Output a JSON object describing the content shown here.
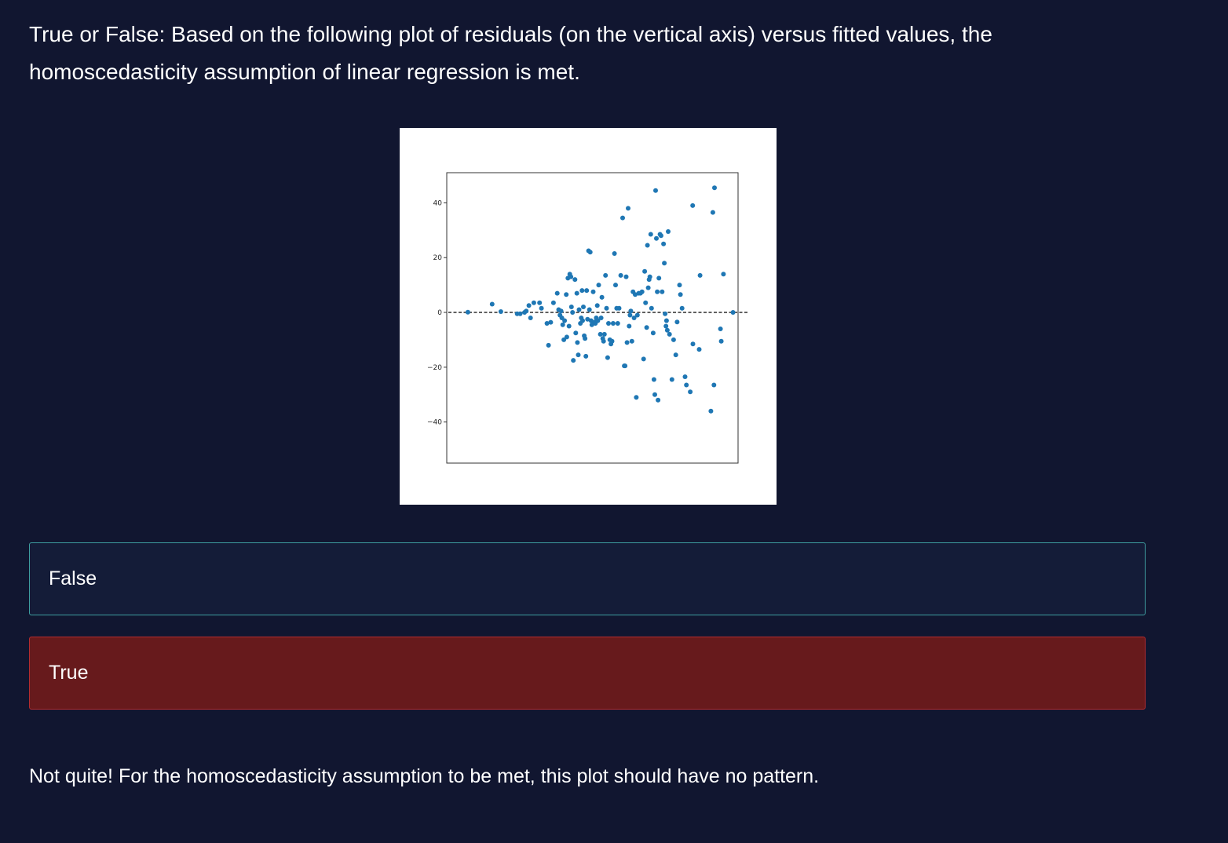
{
  "question": {
    "line1": "True or False: Based on the following plot of residuals (on the vertical axis) versus fitted values, the",
    "line2": "homoscedasticity assumption of linear regression is met."
  },
  "options": [
    {
      "label": "False",
      "state": "default"
    },
    {
      "label": "True",
      "state": "selected-incorrect"
    }
  ],
  "feedback": "Not quite! For the homoscedasticity assumption to be met, this plot should have no pattern.",
  "colors": {
    "background": "#111630",
    "option_default_bg": "#141c38",
    "option_default_border": "#3e9da0",
    "option_incorrect_bg": "#671a1c",
    "option_incorrect_border": "#b32c2f",
    "point_color": "#1f77b4"
  },
  "chart_data": {
    "type": "scatter",
    "title": "",
    "xlabel": "",
    "ylabel": "",
    "ylim": [
      -55,
      51
    ],
    "xlim": [
      0,
      100
    ],
    "yticks": [
      40,
      20,
      0,
      -20,
      -40
    ],
    "ytick_labels": [
      "40",
      "20",
      "0",
      "−20",
      "−40"
    ],
    "show_xticks": false,
    "reference_line": {
      "y": 0,
      "style": "dashed",
      "color": "#000000"
    },
    "points": [
      [
        4.3,
        0.1
      ],
      [
        13.2,
        3
      ],
      [
        16.4,
        0.3
      ],
      [
        22.4,
        -0.5
      ],
      [
        23.5,
        -0.5
      ],
      [
        25.1,
        0
      ],
      [
        25.7,
        0.5
      ],
      [
        26.7,
        2.5
      ],
      [
        27.3,
        -2
      ],
      [
        28.5,
        3.5
      ],
      [
        30.6,
        3.5
      ],
      [
        31.3,
        1.5
      ],
      [
        33.3,
        -4
      ],
      [
        33.9,
        -12
      ],
      [
        34.7,
        -3.6
      ],
      [
        35.7,
        3.5
      ],
      [
        37.1,
        7
      ],
      [
        37.6,
        1
      ],
      [
        38.1,
        -1
      ],
      [
        38.5,
        0.5
      ],
      [
        38.8,
        -2
      ],
      [
        39.1,
        -4.5
      ],
      [
        39.5,
        -10
      ],
      [
        39.8,
        -3
      ],
      [
        40.4,
        6.5
      ],
      [
        40.6,
        -9
      ],
      [
        41,
        12.5
      ],
      [
        41.4,
        -5
      ],
      [
        41.7,
        14
      ],
      [
        42.1,
        13
      ],
      [
        42.3,
        2
      ],
      [
        42.7,
        0
      ],
      [
        43,
        -17.5
      ],
      [
        43.6,
        12
      ],
      [
        43.9,
        -7.5
      ],
      [
        44.3,
        7
      ],
      [
        44.5,
        -11
      ],
      [
        44.8,
        -15.5
      ],
      [
        45.1,
        1
      ],
      [
        45.6,
        -4
      ],
      [
        45.9,
        -2
      ],
      [
        46.2,
        8
      ],
      [
        46.4,
        -3
      ],
      [
        46.7,
        2
      ],
      [
        47,
        -8.5
      ],
      [
        47.3,
        -9.5
      ],
      [
        47.6,
        -16
      ],
      [
        47.9,
        8
      ],
      [
        48.2,
        -2.5
      ],
      [
        48.6,
        22.5
      ],
      [
        48.9,
        1
      ],
      [
        49.2,
        22
      ],
      [
        49.5,
        -3
      ],
      [
        49.8,
        -4.5
      ],
      [
        50.3,
        7.5
      ],
      [
        50.8,
        -3.5
      ],
      [
        51.1,
        -4
      ],
      [
        51.4,
        -2
      ],
      [
        51.8,
        2.5
      ],
      [
        52,
        -3
      ],
      [
        52.3,
        10
      ],
      [
        52.9,
        -8
      ],
      [
        53.2,
        -2
      ],
      [
        53.5,
        5.5
      ],
      [
        53.8,
        -9.5
      ],
      [
        54.1,
        -10.5
      ],
      [
        54.4,
        -8
      ],
      [
        54.8,
        13.5
      ],
      [
        55.2,
        1.5
      ],
      [
        55.6,
        -16.5
      ],
      [
        55.9,
        -4
      ],
      [
        56.4,
        -10
      ],
      [
        56.8,
        -11.5
      ],
      [
        57.2,
        -10.5
      ],
      [
        57.6,
        -4
      ],
      [
        58.1,
        21.5
      ],
      [
        58.5,
        10
      ],
      [
        58.9,
        1.5
      ],
      [
        59.3,
        -4
      ],
      [
        59.8,
        1.5
      ],
      [
        60.4,
        13.5
      ],
      [
        61.1,
        34.5
      ],
      [
        61.7,
        -19.5
      ],
      [
        62,
        -19.5
      ],
      [
        62.4,
        13
      ],
      [
        62.7,
        -11
      ],
      [
        63.1,
        38
      ],
      [
        63.5,
        -5
      ],
      [
        63.8,
        -1
      ],
      [
        64.1,
        0.5
      ],
      [
        64.5,
        -10.5
      ],
      [
        64.9,
        7.5
      ],
      [
        65.3,
        -2
      ],
      [
        65.7,
        6.5
      ],
      [
        66.1,
        -31
      ],
      [
        66.5,
        -1
      ],
      [
        67,
        7
      ],
      [
        67.6,
        7
      ],
      [
        68.2,
        7.5
      ],
      [
        68.8,
        -17
      ],
      [
        69.2,
        15
      ],
      [
        69.5,
        3.5
      ],
      [
        69.9,
        -5.5
      ],
      [
        70.2,
        24.5
      ],
      [
        70.5,
        9
      ],
      [
        70.8,
        12
      ],
      [
        71.1,
        13
      ],
      [
        71.4,
        28.5
      ],
      [
        71.7,
        1.5
      ],
      [
        72.3,
        -7.5
      ],
      [
        72.6,
        -24.5
      ],
      [
        72.9,
        -30
      ],
      [
        73.2,
        44.5
      ],
      [
        73.5,
        27
      ],
      [
        73.8,
        7.5
      ],
      [
        74.1,
        -32
      ],
      [
        74.4,
        12.5
      ],
      [
        74.8,
        28.5
      ],
      [
        75.2,
        28
      ],
      [
        75.6,
        7.5
      ],
      [
        76.1,
        25
      ],
      [
        76.4,
        18
      ],
      [
        76.7,
        -0.5
      ],
      [
        77,
        -5
      ],
      [
        77.2,
        -3
      ],
      [
        77.5,
        -6.5
      ],
      [
        77.8,
        29.5
      ],
      [
        78.3,
        -8
      ],
      [
        79.2,
        -24.5
      ],
      [
        79.8,
        -10
      ],
      [
        80.6,
        -15.5
      ],
      [
        81.1,
        -3.5
      ],
      [
        82,
        10
      ],
      [
        82.3,
        6.5
      ],
      [
        82.9,
        1.5
      ],
      [
        84,
        -23.5
      ],
      [
        84.5,
        -26.5
      ],
      [
        85.9,
        -29
      ],
      [
        86.8,
        39
      ],
      [
        86.9,
        -11.5
      ],
      [
        89.2,
        -13.5
      ],
      [
        89.5,
        13.5
      ],
      [
        93.5,
        -36
      ],
      [
        94.2,
        36.5
      ],
      [
        94.8,
        45.5
      ],
      [
        94.6,
        -26.5
      ],
      [
        97,
        -6
      ],
      [
        97.3,
        -10.5
      ],
      [
        98.1,
        14
      ],
      [
        101.6,
        0
      ]
    ]
  }
}
